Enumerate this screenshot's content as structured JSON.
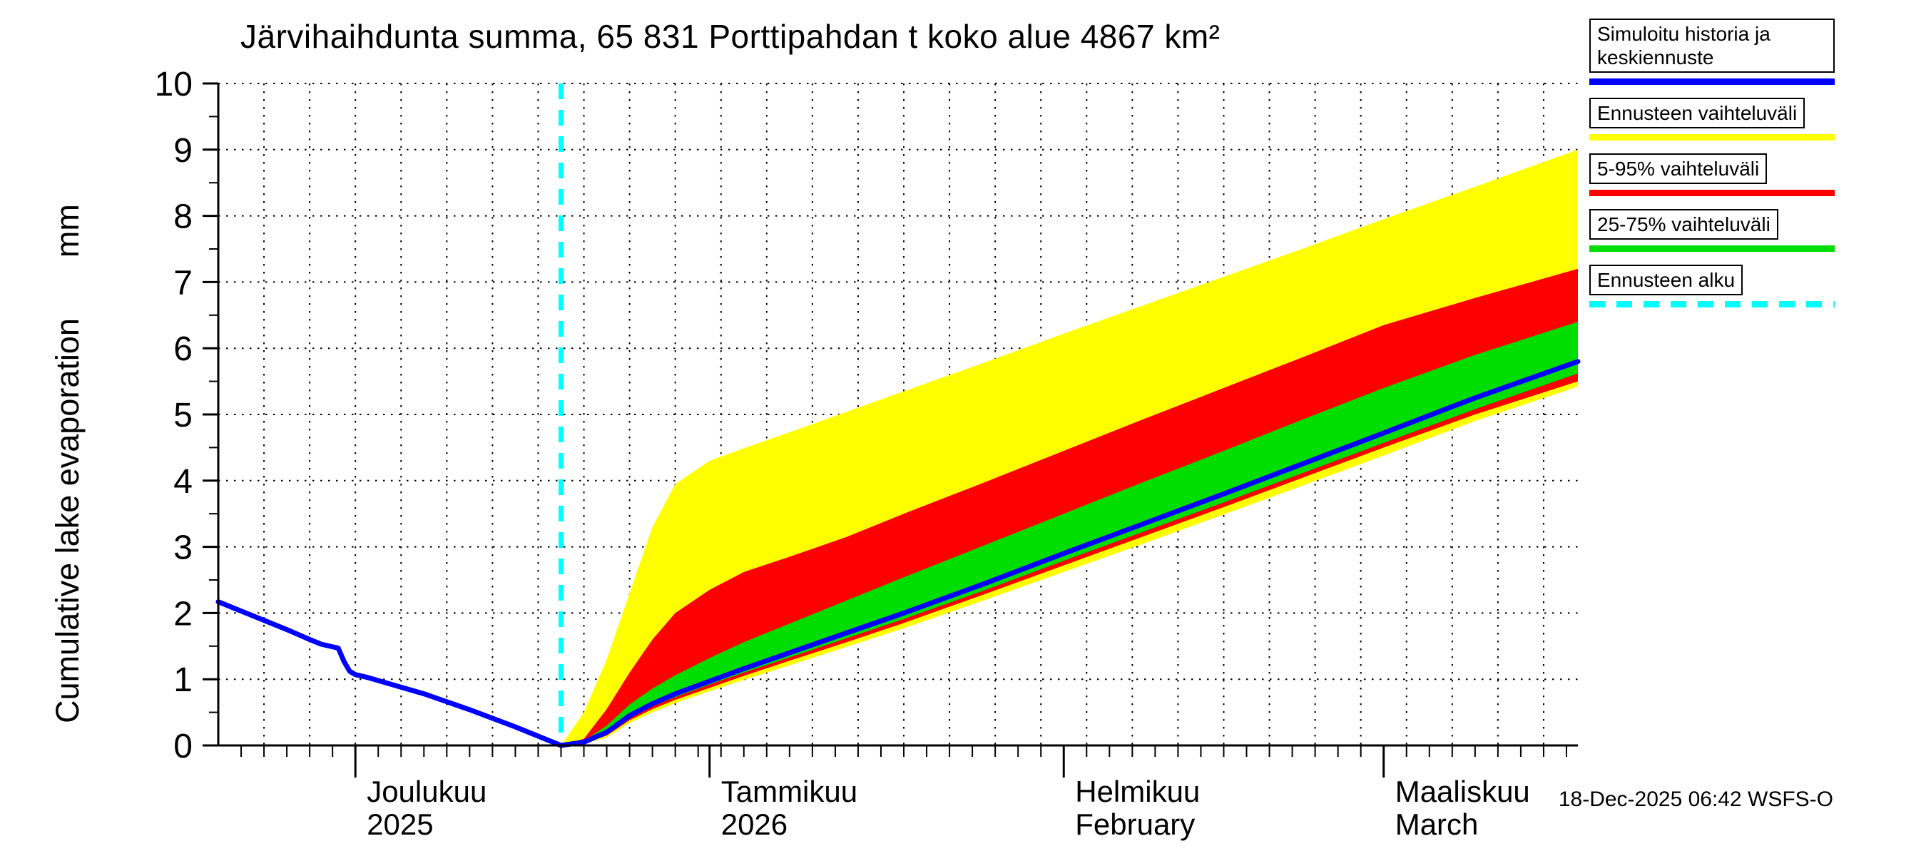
{
  "footer": {
    "timestamp": "18-Dec-2025 06:42 WSFS-O"
  },
  "legend": {
    "items": [
      {
        "label": "Simuloitu historia ja keskiennuste",
        "color": "#0000ff",
        "dashed": false
      },
      {
        "label": "Ennusteen vaihteluväli",
        "color": "#ffff00",
        "dashed": false
      },
      {
        "label": "5-95% vaihteluväli",
        "color": "#ff0000",
        "dashed": false
      },
      {
        "label": "25-75% vaihteluväli",
        "color": "#00dd00",
        "dashed": false
      },
      {
        "label": "Ennusteen alku",
        "color": "#00ffff",
        "dashed": true
      }
    ]
  },
  "chart_data": {
    "type": "area",
    "title": "Järvihaihdunta summa, 65 831 Porttipahdan t koko alue 4867 km²",
    "ylabel": "Cumulative lake evaporation",
    "ylabel_unit": "mm",
    "ylim": [
      0,
      10
    ],
    "y_ticks": [
      0,
      1,
      2,
      3,
      4,
      5,
      6,
      7,
      8,
      9,
      10
    ],
    "x_range_days": [
      0,
      119
    ],
    "x_axis_note": "day 0 = 19-Nov-2025",
    "x_grid_interval_days": 4,
    "x_tick_interval_days": 2,
    "grid": "dotted",
    "legend_position": "top-right",
    "months": [
      {
        "name": "Joulukuu",
        "sub": "2025",
        "start_day": 12
      },
      {
        "name": "Tammikuu",
        "sub": "2026",
        "start_day": 43
      },
      {
        "name": "Helmikuu",
        "sub": "February",
        "start_day": 74
      },
      {
        "name": "Maaliskuu",
        "sub": "March",
        "start_day": 102
      }
    ],
    "forecast_start_day": 30,
    "colors": {
      "median": "#0000ff",
      "band_minmax": "#ffff00",
      "band_5_95": "#ff0000",
      "band_25_75": "#00dd00",
      "forecast_start": "#00ffff",
      "grid": "#000000"
    },
    "history": {
      "days": [
        0,
        2,
        4,
        6,
        8,
        9,
        10,
        10.5,
        11,
        11.5,
        12,
        13,
        14,
        16,
        18,
        20,
        22,
        24,
        26,
        28,
        29,
        30
      ],
      "values": [
        2.17,
        2.03,
        1.89,
        1.75,
        1.6,
        1.53,
        1.49,
        1.47,
        1.27,
        1.12,
        1.07,
        1.03,
        0.98,
        0.88,
        0.78,
        0.66,
        0.54,
        0.41,
        0.28,
        0.14,
        0.07,
        0.0
      ]
    },
    "forecast": {
      "days": [
        30,
        32,
        34,
        36,
        38,
        40,
        43,
        46,
        50,
        55,
        60,
        67,
        74,
        81,
        88,
        95,
        102,
        110,
        119
      ],
      "median": [
        0,
        0.05,
        0.2,
        0.45,
        0.63,
        0.78,
        0.97,
        1.16,
        1.4,
        1.7,
        2.0,
        2.44,
        2.9,
        3.35,
        3.8,
        4.26,
        4.72,
        5.25,
        5.8
      ],
      "band_minmax": {
        "hi": [
          0,
          0.5,
          1.3,
          2.3,
          3.3,
          3.95,
          4.3,
          4.49,
          4.73,
          5.04,
          5.35,
          5.78,
          6.22,
          6.65,
          7.08,
          7.51,
          7.95,
          8.44,
          9.0
        ],
        "lo": [
          0,
          0.02,
          0.12,
          0.34,
          0.5,
          0.64,
          0.82,
          0.99,
          1.21,
          1.49,
          1.77,
          2.19,
          2.62,
          3.05,
          3.49,
          3.93,
          4.38,
          4.9,
          5.42
        ]
      },
      "band_5_95": {
        "hi": [
          0,
          0.1,
          0.55,
          1.1,
          1.6,
          2.0,
          2.35,
          2.62,
          2.85,
          3.15,
          3.5,
          3.97,
          4.45,
          4.93,
          5.4,
          5.87,
          6.35,
          6.76,
          7.2
        ],
        "lo": [
          0,
          0.03,
          0.15,
          0.38,
          0.55,
          0.69,
          0.87,
          1.05,
          1.28,
          1.56,
          1.85,
          2.28,
          2.72,
          3.16,
          3.6,
          4.05,
          4.5,
          5.0,
          5.5
        ]
      },
      "band_25_75": {
        "hi": [
          0,
          0.07,
          0.3,
          0.62,
          0.86,
          1.06,
          1.32,
          1.56,
          1.84,
          2.19,
          2.54,
          3.02,
          3.5,
          3.98,
          4.45,
          4.93,
          5.4,
          5.9,
          6.4
        ],
        "lo": [
          0,
          0.04,
          0.18,
          0.42,
          0.59,
          0.73,
          0.92,
          1.1,
          1.33,
          1.62,
          1.91,
          2.34,
          2.79,
          3.23,
          3.67,
          4.12,
          4.57,
          5.08,
          5.62
        ]
      }
    }
  }
}
